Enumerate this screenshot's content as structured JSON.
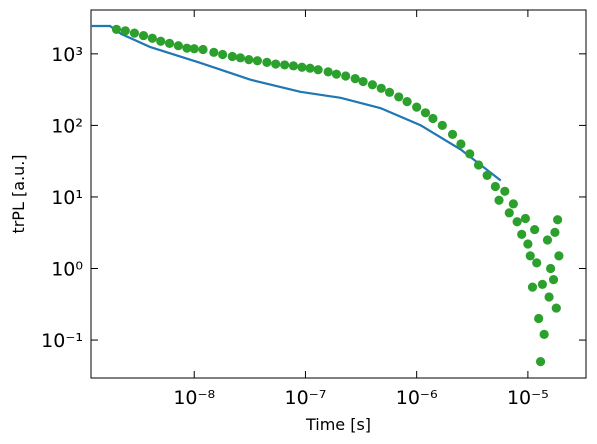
{
  "chart_data": {
    "type": "scatter",
    "x_label": "Time [s]",
    "y_label": "trPL [a.u.]",
    "xscale": "log",
    "yscale": "log",
    "xlim": [
      1.18e-09,
      3.33e-05
    ],
    "ylim": [
      0.0295,
      4100
    ],
    "xticks": [
      {
        "value": 1e-08,
        "label": "10⁻⁸"
      },
      {
        "value": 1e-07,
        "label": "10⁻⁷"
      },
      {
        "value": 1e-06,
        "label": "10⁻⁶"
      },
      {
        "value": 1e-05,
        "label": "10⁻⁵"
      }
    ],
    "yticks": [
      {
        "value": 0.1,
        "label": "10⁻¹"
      },
      {
        "value": 1,
        "label": "10⁰"
      },
      {
        "value": 10,
        "label": "10¹"
      },
      {
        "value": 100,
        "label": "10²"
      },
      {
        "value": 1000,
        "label": "10³"
      }
    ],
    "series": [
      {
        "type": "line",
        "color": "#1f77b4",
        "x": [
          1.18e-09,
          1.75e-09,
          2.2e-09,
          4e-09,
          1.13e-08,
          3.2e-08,
          9e-08,
          2.07e-07,
          4.7e-07,
          1.09e-06,
          2.49e-06,
          5.7e-06
        ],
        "values": [
          2450,
          2450,
          1900,
          1250,
          750,
          435,
          295,
          243,
          175,
          100,
          46,
          17
        ]
      },
      {
        "type": "scatter",
        "color": "#2ca02c",
        "x": [
          2e-09,
          2.4e-09,
          2.9e-09,
          3.5e-09,
          4.2e-09,
          5e-09,
          6e-09,
          7.2e-09,
          8.6e-09,
          1e-08,
          1.2e-08,
          1.5e-08,
          1.8e-08,
          2.2e-08,
          2.6e-08,
          3.1e-08,
          3.7e-08,
          4.5e-08,
          5.4e-08,
          6.5e-08,
          7.8e-08,
          9.3e-08,
          1.1e-07,
          1.3e-07,
          1.6e-07,
          1.9e-07,
          2.3e-07,
          2.8e-07,
          3.3e-07,
          4e-07,
          4.8e-07,
          5.7e-07,
          6.9e-07,
          8.2e-07,
          1e-06,
          1.2e-06,
          1.4e-06,
          1.7e-06,
          2.1e-06,
          2.5e-06,
          3e-06,
          3.6e-06,
          4.3e-06,
          5.1e-06,
          5.5e-06,
          6.2e-06,
          6.8e-06,
          7.4e-06,
          8e-06,
          8.8e-06,
          9.5e-06,
          1e-05,
          1.05e-05,
          1.1e-05,
          1.15e-05,
          1.2e-05,
          1.25e-05,
          1.3e-05,
          1.4e-05,
          1.5e-05,
          1.6e-05,
          1.7e-05,
          1.8e-05,
          1.85e-05,
          1.9e-05,
          1.75e-05,
          1.35e-05,
          1.55e-05
        ],
        "values": [
          2200,
          2100,
          1950,
          1800,
          1650,
          1500,
          1400,
          1300,
          1200,
          1180,
          1150,
          1050,
          980,
          920,
          880,
          830,
          800,
          760,
          720,
          700,
          680,
          650,
          630,
          600,
          560,
          520,
          490,
          450,
          410,
          370,
          330,
          290,
          250,
          215,
          180,
          150,
          125,
          100,
          75,
          55,
          40,
          28,
          20,
          14,
          9,
          12,
          6,
          8,
          4.5,
          3,
          5,
          2.2,
          1.5,
          0.55,
          3.5,
          1.2,
          0.2,
          0.05,
          0.12,
          2.5,
          1,
          0.7,
          0.28,
          4.8,
          1.5,
          3.2,
          0.6,
          0.4
        ]
      }
    ]
  }
}
